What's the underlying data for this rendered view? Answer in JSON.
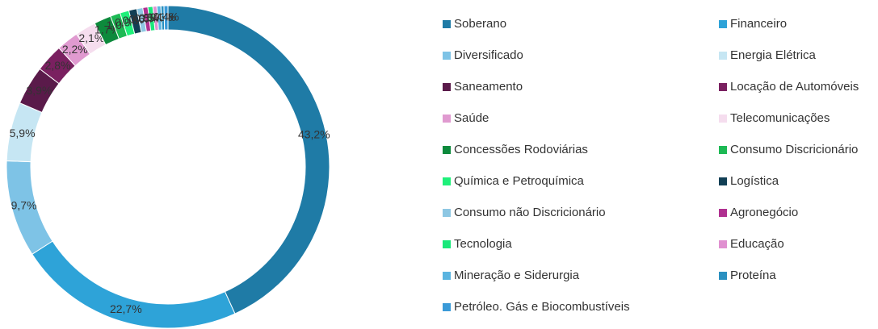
{
  "chart_data": {
    "type": "donut",
    "categories": [
      "Soberano",
      "Financeiro",
      "Diversificado",
      "Energia Elétrica",
      "Saneamento",
      "Locação de Automóveis",
      "Saúde",
      "Telecomunicações",
      "Concessões Rodoviárias",
      "Consumo Discricionário",
      "Química e Petroquímica",
      "Logística",
      "Consumo não Discricionário",
      "Agronegócio",
      "Tecnologia",
      "Educação",
      "Mineração e Siderurgia",
      "Proteína",
      "Petróleo. Gás e Biocombustíveis"
    ],
    "values": [
      43.2,
      22.7,
      9.7,
      5.9,
      3.9,
      2.8,
      2.2,
      2.1,
      1.7,
      1.0,
      0.9,
      0.8,
      0.6,
      0.5,
      0.5,
      0.4,
      0.4,
      0.3,
      0.4
    ],
    "value_labels": [
      "43,2%",
      "22,7%",
      "9,7%",
      "5,9%",
      "3,9%",
      "2,8%",
      "2,2%",
      "2,1%",
      "1,7%",
      "1,0%",
      "0,9%",
      "0,8%",
      "0,6%",
      "0,5%",
      "0,5%",
      "0,4%",
      "0,4%",
      "0,3%",
      "0,4%"
    ],
    "colors": [
      "#1f7ba6",
      "#2ea3d8",
      "#7ec3e6",
      "#c6e6f3",
      "#5a1a4a",
      "#7a2060",
      "#e09ad0",
      "#f5ddee",
      "#0d8a3c",
      "#1db954",
      "#1ff07a",
      "#123f55",
      "#8dc7e3",
      "#b03090",
      "#19e87a",
      "#e090d0",
      "#5ab4e0",
      "#2a90c0",
      "#3a9ad8"
    ],
    "legend": "right"
  }
}
